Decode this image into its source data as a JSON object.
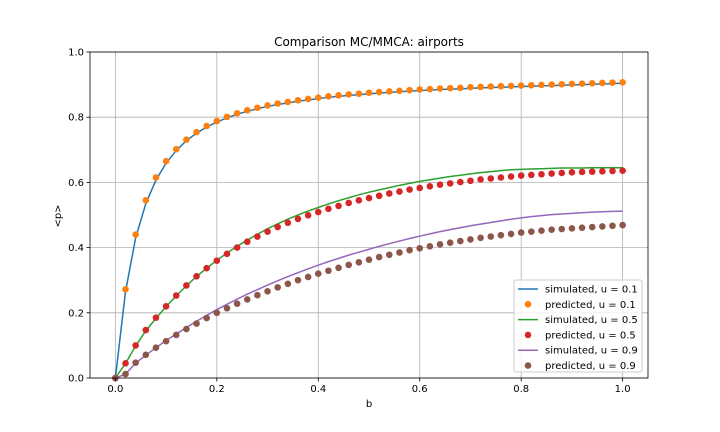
{
  "chart_data": {
    "type": "line",
    "title": "Comparison MC/MMCA: airports",
    "xlabel": "b",
    "ylabel": "<p>",
    "xlim": [
      -0.05,
      1.05
    ],
    "ylim": [
      0.0,
      1.0
    ],
    "xticks": [
      "0.0",
      "0.2",
      "0.4",
      "0.6",
      "0.8",
      "1.0"
    ],
    "xtick_values": [
      0.0,
      0.2,
      0.4,
      0.6,
      0.8,
      1.0
    ],
    "yticks": [
      "0.0",
      "0.2",
      "0.4",
      "0.6",
      "0.8",
      "1.0"
    ],
    "ytick_values": [
      0.0,
      0.2,
      0.4,
      0.6,
      0.8,
      1.0
    ],
    "grid": true,
    "legend_position": "lower-right",
    "x": [
      0.0,
      0.02,
      0.04,
      0.06,
      0.08,
      0.1,
      0.12,
      0.14,
      0.16,
      0.18,
      0.2,
      0.22,
      0.24,
      0.26,
      0.28,
      0.3,
      0.32,
      0.34,
      0.36,
      0.38,
      0.4,
      0.42,
      0.44,
      0.46,
      0.48,
      0.5,
      0.52,
      0.54,
      0.56,
      0.58,
      0.6,
      0.62,
      0.64,
      0.66,
      0.68,
      0.7,
      0.72,
      0.74,
      0.76,
      0.78,
      0.8,
      0.82,
      0.84,
      0.86,
      0.88,
      0.9,
      0.92,
      0.94,
      0.96,
      0.98,
      1.0
    ],
    "series": [
      {
        "name": "simulated, u = 0.1",
        "kind": "line",
        "color": "#1f77b4",
        "values": [
          0.0,
          0.265,
          0.43,
          0.535,
          0.607,
          0.659,
          0.698,
          0.728,
          0.751,
          0.77,
          0.785,
          0.798,
          0.809,
          0.818,
          0.826,
          0.833,
          0.839,
          0.844,
          0.849,
          0.853,
          0.857,
          0.861,
          0.864,
          0.867,
          0.869,
          0.872,
          0.874,
          0.876,
          0.878,
          0.88,
          0.882,
          0.883,
          0.885,
          0.886,
          0.887,
          0.889,
          0.89,
          0.891,
          0.892,
          0.893,
          0.894,
          0.895,
          0.896,
          0.897,
          0.898,
          0.899,
          0.9,
          0.901,
          0.902,
          0.903,
          0.904
        ]
      },
      {
        "name": "predicted, u = 0.1",
        "kind": "points",
        "color": "#ff7f0e",
        "values": [
          0.0,
          0.272,
          0.44,
          0.545,
          0.615,
          0.665,
          0.702,
          0.731,
          0.754,
          0.773,
          0.788,
          0.801,
          0.812,
          0.821,
          0.829,
          0.836,
          0.842,
          0.847,
          0.852,
          0.856,
          0.86,
          0.864,
          0.867,
          0.87,
          0.872,
          0.875,
          0.877,
          0.879,
          0.881,
          0.883,
          0.885,
          0.886,
          0.888,
          0.889,
          0.89,
          0.892,
          0.893,
          0.894,
          0.895,
          0.896,
          0.897,
          0.898,
          0.899,
          0.9,
          0.901,
          0.902,
          0.903,
          0.904,
          0.905,
          0.906,
          0.907
        ]
      },
      {
        "name": "simulated, u = 0.5",
        "kind": "line",
        "color": "#2ca02c",
        "values": [
          0.0,
          0.045,
          0.098,
          0.145,
          0.183,
          0.219,
          0.252,
          0.283,
          0.311,
          0.337,
          0.361,
          0.383,
          0.404,
          0.423,
          0.441,
          0.458,
          0.473,
          0.487,
          0.5,
          0.512,
          0.523,
          0.534,
          0.544,
          0.553,
          0.562,
          0.57,
          0.577,
          0.584,
          0.591,
          0.597,
          0.603,
          0.608,
          0.613,
          0.618,
          0.622,
          0.626,
          0.63,
          0.633,
          0.636,
          0.639,
          0.64,
          0.641,
          0.642,
          0.643,
          0.644,
          0.644,
          0.644,
          0.645,
          0.645,
          0.645,
          0.645
        ]
      },
      {
        "name": "predicted, u = 0.5",
        "kind": "points",
        "color": "#d62728",
        "values": [
          0.0,
          0.045,
          0.1,
          0.147,
          0.185,
          0.22,
          0.253,
          0.284,
          0.312,
          0.337,
          0.36,
          0.381,
          0.4,
          0.418,
          0.434,
          0.449,
          0.463,
          0.476,
          0.488,
          0.499,
          0.509,
          0.519,
          0.528,
          0.537,
          0.545,
          0.552,
          0.559,
          0.566,
          0.572,
          0.578,
          0.583,
          0.588,
          0.593,
          0.597,
          0.601,
          0.605,
          0.609,
          0.612,
          0.615,
          0.618,
          0.621,
          0.623,
          0.625,
          0.627,
          0.629,
          0.631,
          0.632,
          0.633,
          0.634,
          0.635,
          0.636
        ]
      },
      {
        "name": "simulated, u = 0.9",
        "kind": "line",
        "color": "#9467bd",
        "values": [
          0.0,
          0.012,
          0.046,
          0.07,
          0.093,
          0.115,
          0.135,
          0.155,
          0.174,
          0.192,
          0.21,
          0.226,
          0.242,
          0.257,
          0.271,
          0.285,
          0.298,
          0.311,
          0.323,
          0.335,
          0.346,
          0.357,
          0.367,
          0.377,
          0.386,
          0.395,
          0.404,
          0.412,
          0.42,
          0.428,
          0.435,
          0.442,
          0.449,
          0.455,
          0.461,
          0.467,
          0.472,
          0.477,
          0.482,
          0.487,
          0.491,
          0.495,
          0.498,
          0.501,
          0.503,
          0.505,
          0.507,
          0.509,
          0.51,
          0.511,
          0.512
        ]
      },
      {
        "name": "predicted, u = 0.9",
        "kind": "points",
        "color": "#8c564b",
        "values": [
          0.0,
          0.012,
          0.047,
          0.071,
          0.093,
          0.113,
          0.132,
          0.15,
          0.167,
          0.184,
          0.2,
          0.214,
          0.228,
          0.241,
          0.254,
          0.266,
          0.278,
          0.289,
          0.3,
          0.31,
          0.32,
          0.329,
          0.338,
          0.347,
          0.355,
          0.363,
          0.371,
          0.378,
          0.385,
          0.392,
          0.398,
          0.404,
          0.41,
          0.415,
          0.42,
          0.425,
          0.43,
          0.434,
          0.438,
          0.442,
          0.446,
          0.449,
          0.452,
          0.455,
          0.457,
          0.459,
          0.461,
          0.463,
          0.465,
          0.467,
          0.469
        ]
      }
    ]
  }
}
